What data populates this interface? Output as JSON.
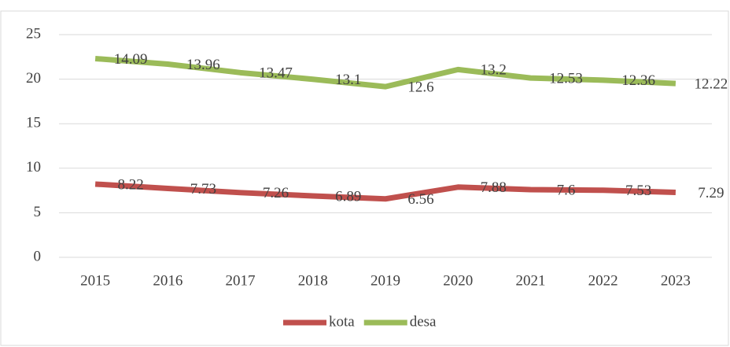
{
  "chart_data": {
    "type": "line",
    "stacked": true,
    "categories": [
      "2015",
      "2016",
      "2017",
      "2018",
      "2019",
      "2020",
      "2021",
      "2022",
      "2023"
    ],
    "series": [
      {
        "name": "kota",
        "color": "#c0504d",
        "values": [
          8.22,
          7.73,
          7.26,
          6.89,
          6.56,
          7.88,
          7.6,
          7.53,
          7.29
        ]
      },
      {
        "name": "desa",
        "color": "#9bbb59",
        "values": [
          14.09,
          13.96,
          13.47,
          13.1,
          12.6,
          13.2,
          12.53,
          12.36,
          12.22
        ]
      }
    ],
    "ylim": [
      0,
      25
    ],
    "yticks": [
      0,
      5,
      10,
      15,
      20,
      25
    ],
    "grid": true,
    "legend": "bottom"
  }
}
